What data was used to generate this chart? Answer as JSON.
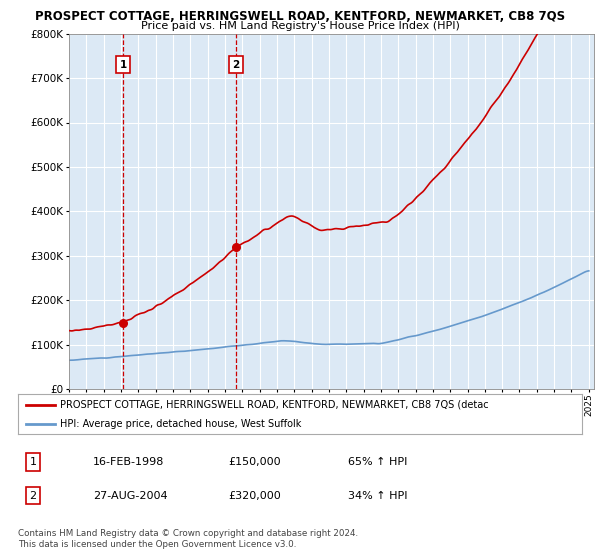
{
  "title": "PROSPECT COTTAGE, HERRINGSWELL ROAD, KENTFORD, NEWMARKET, CB8 7QS",
  "subtitle": "Price paid vs. HM Land Registry's House Price Index (HPI)",
  "background_color": "#ffffff",
  "plot_bg_color": "#dce9f5",
  "grid_color": "#ffffff",
  "red_line_color": "#cc0000",
  "blue_line_color": "#6699cc",
  "sale1_date_num": 1998.12,
  "sale1_price": 150000,
  "sale1_label": "1",
  "sale2_date_num": 2004.65,
  "sale2_price": 320000,
  "sale2_label": "2",
  "legend_line1": "PROSPECT COTTAGE, HERRINGSWELL ROAD, KENTFORD, NEWMARKET, CB8 7QS (detac",
  "legend_line2": "HPI: Average price, detached house, West Suffolk",
  "table_row1": [
    "1",
    "16-FEB-1998",
    "£150,000",
    "65% ↑ HPI"
  ],
  "table_row2": [
    "2",
    "27-AUG-2004",
    "£320,000",
    "34% ↑ HPI"
  ],
  "footnote": "Contains HM Land Registry data © Crown copyright and database right 2024.\nThis data is licensed under the Open Government Licence v3.0.",
  "ylim": [
    0,
    800000
  ],
  "yticks": [
    0,
    100000,
    200000,
    300000,
    400000,
    500000,
    600000,
    700000,
    800000
  ],
  "xlim_start": 1995,
  "xlim_end": 2025.3
}
